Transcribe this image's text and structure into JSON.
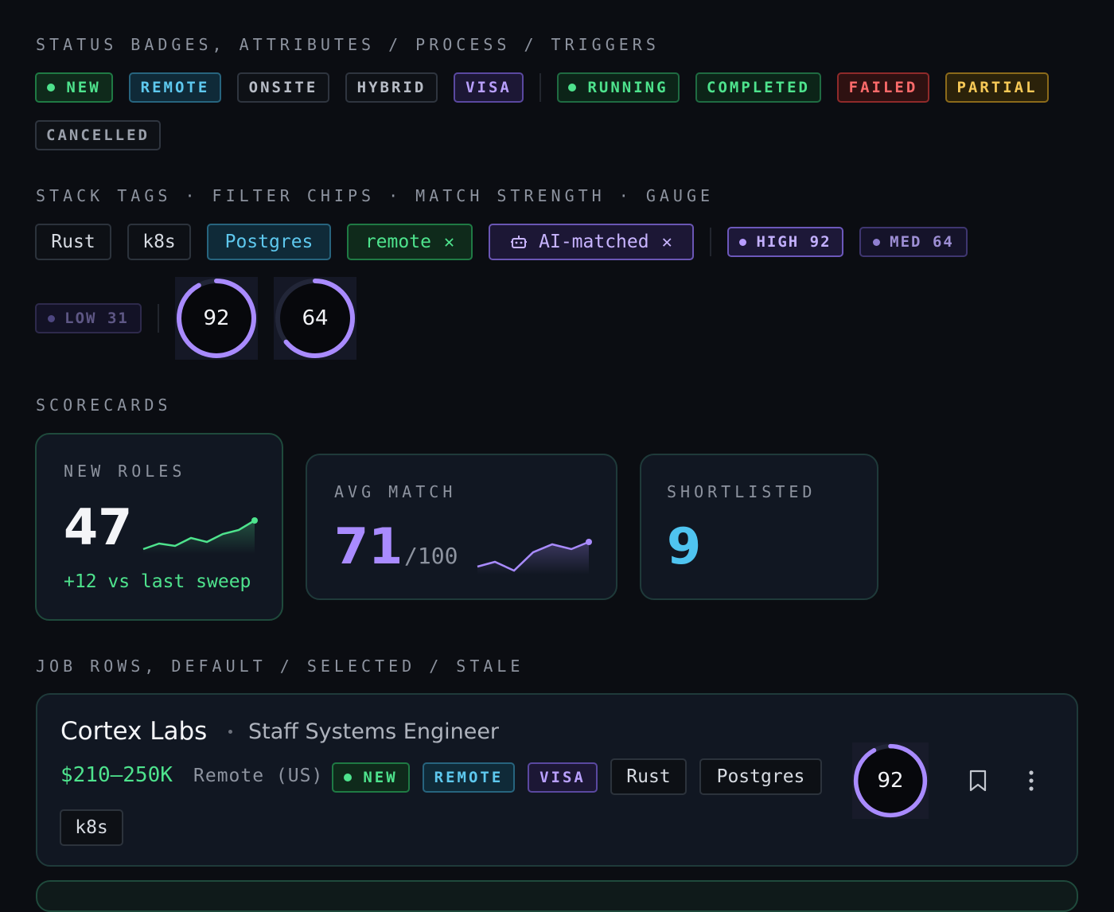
{
  "sections": {
    "status": "STATUS BADGES, ATTRIBUTES / PROCESS / TRIGGERS",
    "stack": "STACK TAGS · FILTER CHIPS · MATCH STRENGTH · GAUGE",
    "scorecards": "SCORECARDS",
    "jobrows": "JOB ROWS, DEFAULT / SELECTED / STALE"
  },
  "status_badges": {
    "new": "NEW",
    "remote": "REMOTE",
    "onsite": "ONSITE",
    "hybrid": "HYBRID",
    "visa": "VISA",
    "running": "RUNNING",
    "completed": "COMPLETED",
    "failed": "FAILED",
    "partial": "PARTIAL",
    "cancelled": "CANCELLED"
  },
  "stack_tags": {
    "rust": "Rust",
    "k8s": "k8s",
    "postgres": "Postgres"
  },
  "filter_chips": {
    "remote": "remote",
    "ai": "AI-matched"
  },
  "match_strength": {
    "high": {
      "label": "HIGH",
      "value": 92
    },
    "med": {
      "label": "MED",
      "value": 64
    },
    "low": {
      "label": "LOW",
      "value": 31
    }
  },
  "gauges": [
    {
      "value": 92
    },
    {
      "value": 64
    }
  ],
  "scorecards": {
    "new_roles": {
      "label": "NEW ROLES",
      "value": "47",
      "delta": "+12 vs last sweep"
    },
    "avg_match": {
      "label": "AVG MATCH",
      "value": "71",
      "suffix": "/100"
    },
    "shortlisted": {
      "label": "SHORTLISTED",
      "value": "9"
    }
  },
  "job": {
    "company": "Cortex Labs",
    "role": "Staff Systems Engineer",
    "salary": "$210–250K",
    "location": "Remote (US)",
    "badges": {
      "new": "NEW",
      "remote": "REMOTE",
      "visa": "VISA"
    },
    "tags": [
      "Rust",
      "Postgres",
      "k8s"
    ],
    "match": 92
  },
  "colors": {
    "accent_purple": "#a98bff",
    "green": "#4ee38d",
    "blue": "#5ec8ee",
    "red": "#ff6b6b",
    "yellow": "#f7c957"
  },
  "icons": {
    "chip_ai": "robot-icon",
    "chip_close": "close-icon",
    "bookmark": "bookmark-icon",
    "more": "more-vertical-icon"
  }
}
